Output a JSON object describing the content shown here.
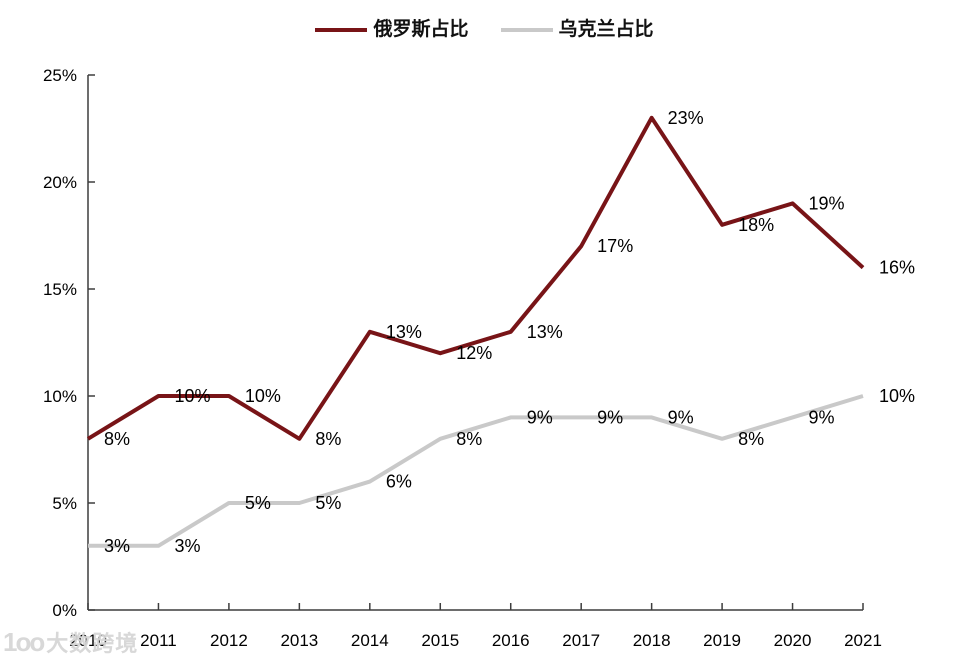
{
  "chart_data": {
    "type": "line",
    "title": "",
    "xlabel": "",
    "ylabel": "",
    "x": [
      "2010",
      "2011",
      "2012",
      "2013",
      "2014",
      "2015",
      "2016",
      "2017",
      "2018",
      "2019",
      "2020",
      "2021"
    ],
    "series": [
      {
        "name": "俄罗斯占比",
        "color": "#781417",
        "values": [
          8,
          10,
          10,
          8,
          13,
          12,
          13,
          17,
          23,
          18,
          19,
          16
        ]
      },
      {
        "name": "乌克兰占比",
        "color": "#c9c9c9",
        "values": [
          3,
          3,
          5,
          5,
          6,
          8,
          9,
          9,
          9,
          8,
          9,
          10
        ]
      }
    ],
    "ylim": [
      0,
      25
    ],
    "yticks": [
      "0%",
      "5%",
      "10%",
      "15%",
      "20%",
      "25%"
    ],
    "grid": false,
    "legend_position": "top-center",
    "data_labels": true,
    "label_suffix": "%",
    "axis_color": "#3d3d3d",
    "text_color": "#000000"
  },
  "watermark": {
    "logo": "1oo",
    "text": "大数跨境"
  }
}
